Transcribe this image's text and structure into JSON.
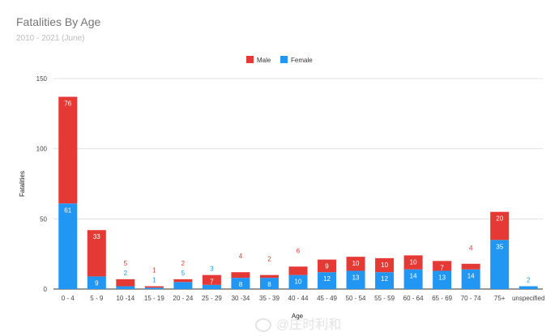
{
  "header": {
    "title": "Fatalities By Age",
    "subtitle": "2010 - 2021 (June)"
  },
  "colors": {
    "male": "#e53935",
    "female": "#2196f3",
    "grid": "#e0e0e0",
    "axis": "#9e9e9e"
  },
  "watermark": {
    "text": "@庄时利和"
  },
  "chart_data": {
    "type": "bar",
    "stacked": true,
    "title": "Fatalities By Age",
    "subtitle": "2010 - 2021 (June)",
    "xlabel": "Age",
    "ylabel": "Fatalities",
    "ylim": [
      0,
      150
    ],
    "yticks": [
      0,
      50,
      100,
      150
    ],
    "grid": true,
    "legend_position": "top",
    "categories": [
      "0 - 4",
      "5 - 9",
      "10 -14",
      "15 - 19",
      "20 - 24",
      "25 - 29",
      "30 -34",
      "35 - 39",
      "40 - 44",
      "45 - 49",
      "50 - 54",
      "55 - 59",
      "60 - 64",
      "65 - 69",
      "70 - 74",
      "75+",
      "unspecified"
    ],
    "series": [
      {
        "name": "Female",
        "color": "#2196f3",
        "values": [
          61,
          9,
          2,
          1,
          5,
          3,
          8,
          8,
          10,
          12,
          13,
          12,
          14,
          13,
          14,
          35,
          2
        ]
      },
      {
        "name": "Male",
        "color": "#e53935",
        "values": [
          76,
          33,
          5,
          1,
          2,
          7,
          4,
          2,
          6,
          9,
          10,
          10,
          10,
          7,
          4,
          20,
          0
        ]
      }
    ]
  }
}
